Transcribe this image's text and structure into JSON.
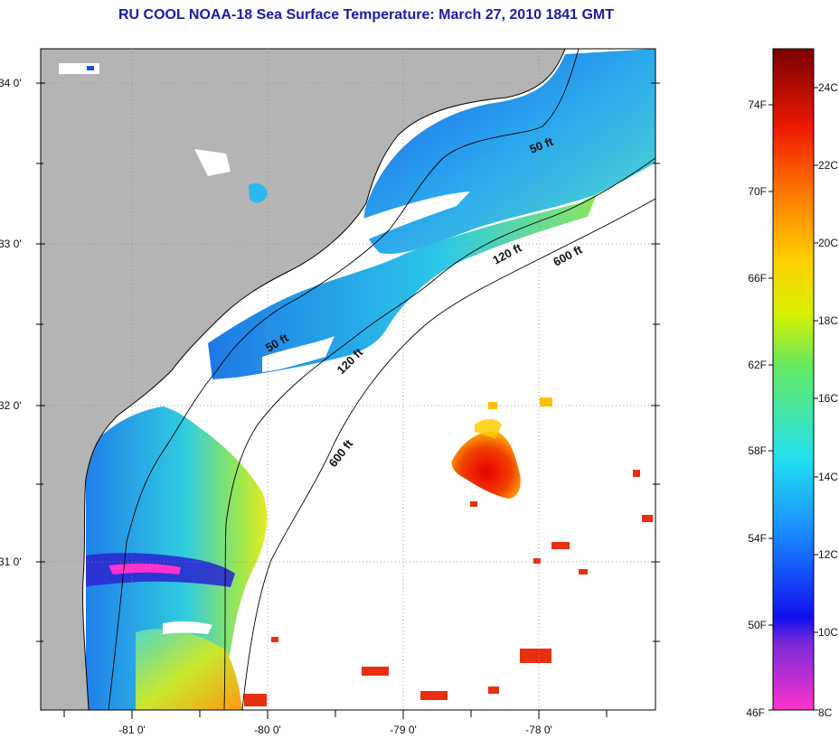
{
  "title": "RU COOL  NOAA-18  Sea Surface Temperature:  March 27, 2010 1841 GMT",
  "map": {
    "lat_ticks": [
      "34 0'",
      "33 0'",
      "32 0'",
      "31 0'"
    ],
    "lon_ticks": [
      "-81 0'",
      "-80 0'",
      "-79 0'",
      "-78 0'"
    ],
    "contour_labels": [
      {
        "text": "50 ft",
        "id": "50-ft-north"
      },
      {
        "text": "120 ft",
        "id": "120-ft-north"
      },
      {
        "text": "600 ft",
        "id": "600-ft-north"
      },
      {
        "text": "50 ft",
        "id": "50-ft-south"
      },
      {
        "text": "120 ft",
        "id": "120-ft-south"
      },
      {
        "text": "600 ft",
        "id": "600-ft-south"
      }
    ],
    "colors": {
      "land": "#b4b4b4",
      "cloud": "#ffffff"
    }
  },
  "colorbar": {
    "fahrenheit_labels": [
      "74F",
      "70F",
      "66F",
      "62F",
      "58F",
      "54F",
      "50F",
      "46F"
    ],
    "celsius_labels": [
      "24C",
      "22C",
      "20C",
      "18C",
      "16C",
      "14C",
      "12C",
      "10C",
      "8C"
    ],
    "range_c": [
      8,
      25
    ]
  }
}
